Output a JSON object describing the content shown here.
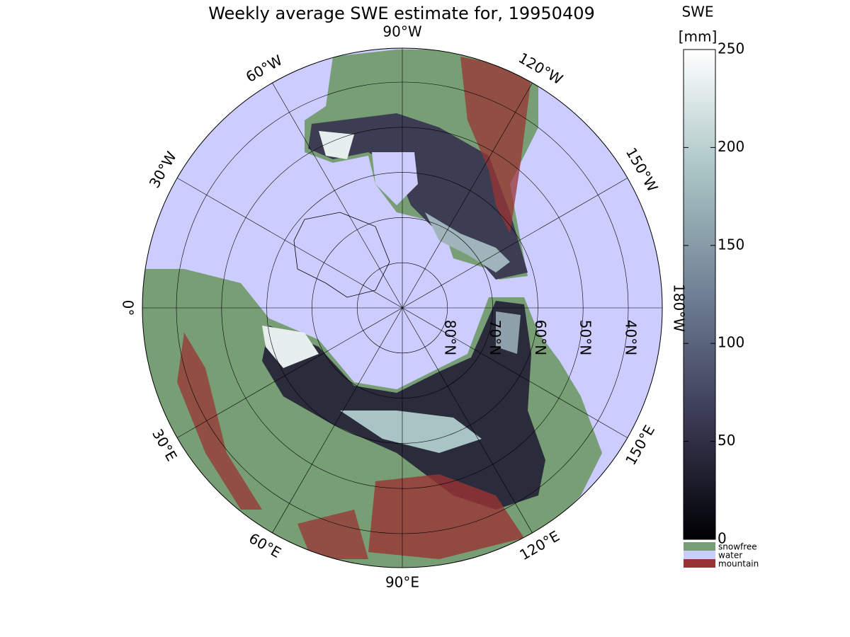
{
  "title": "Weekly average SWE estimate for, 19950409",
  "map": {
    "longitudes": [
      {
        "value": -90,
        "label": "90°W"
      },
      {
        "value": -120,
        "label": "120°W"
      },
      {
        "value": -150,
        "label": "150°W"
      },
      {
        "value": -180,
        "label": "180°W"
      },
      {
        "value": 150,
        "label": "150°E"
      },
      {
        "value": 120,
        "label": "120°E"
      },
      {
        "value": 90,
        "label": "90°E"
      },
      {
        "value": 60,
        "label": "60°E"
      },
      {
        "value": 30,
        "label": "30°E"
      },
      {
        "value": 0,
        "label": "0°"
      },
      {
        "value": -30,
        "label": "30°W"
      },
      {
        "value": -60,
        "label": "60°W"
      }
    ],
    "latitudes": [
      {
        "value": 80,
        "label": "80°N"
      },
      {
        "value": 70,
        "label": "70°N"
      },
      {
        "value": 60,
        "label": "60°N"
      },
      {
        "value": 50,
        "label": "50°N"
      },
      {
        "value": 40,
        "label": "40°N"
      }
    ]
  },
  "colorbar": {
    "title": "SWE",
    "unit": "[mm]",
    "lim": [
      0,
      250
    ],
    "ticks": [
      0,
      50,
      100,
      150,
      200,
      250
    ]
  },
  "legend": [
    {
      "name": "snowfree",
      "color": "#779e74"
    },
    {
      "name": "water",
      "color": "#ccccff"
    },
    {
      "name": "mountain",
      "color": "#993333"
    }
  ]
}
